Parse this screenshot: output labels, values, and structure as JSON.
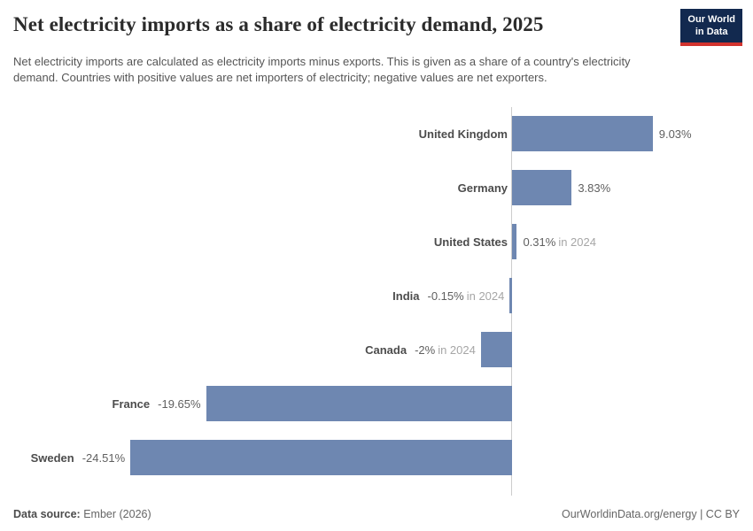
{
  "header": {
    "title": "Net electricity imports as a share of electricity demand, 2025",
    "subtitle": "Net electricity imports are calculated as electricity imports minus exports. This is given as a share of a country's electricity demand. Countries with positive values are net importers of electricity; negative values are net exporters.",
    "logo": {
      "line1": "Our World",
      "line2": "in Data",
      "bg_color": "#12294f",
      "stripe_color": "#d2332e"
    }
  },
  "chart_data": {
    "type": "bar",
    "orientation": "horizontal",
    "title": "Net electricity imports as a share of electricity demand, 2025",
    "categories": [
      "United Kingdom",
      "Germany",
      "United States",
      "India",
      "Canada",
      "France",
      "Sweden"
    ],
    "values": [
      9.03,
      3.83,
      0.31,
      -0.15,
      -2,
      -19.65,
      -24.51
    ],
    "value_labels": [
      "9.03%",
      "3.83%",
      "0.31%",
      "-0.15%",
      "-2%",
      "-19.65%",
      "-24.51%"
    ],
    "value_suffixes": [
      "",
      "",
      "in 2024",
      "in 2024",
      "in 2024",
      "",
      ""
    ],
    "xlim": [
      -24.51,
      9.03
    ],
    "xlabel": "",
    "ylabel": "",
    "grid": false,
    "legend": false,
    "bar_color": "#6e87b1",
    "axis_color": "#cccccc"
  },
  "footer": {
    "data_source_label": "Data source:",
    "data_source_value": "Ember (2026)",
    "attribution": "OurWorldinData.org/energy",
    "separator": " | ",
    "license": "CC BY"
  }
}
